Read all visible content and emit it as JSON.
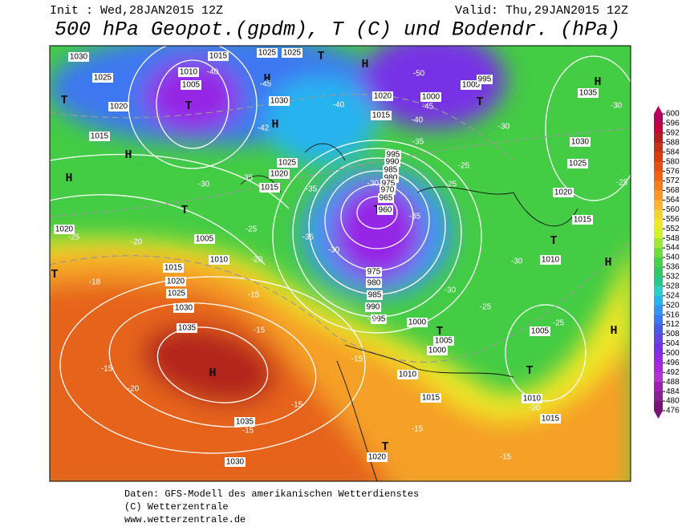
{
  "header": {
    "init": "Init : Wed,28JAN2015 12Z",
    "valid": "Valid: Thu,29JAN2015 12Z",
    "title": "500 hPa Geopot.(gpdm), T (C) und Bodendr. (hPa)"
  },
  "colorbar": {
    "ticks": [
      600,
      596,
      592,
      588,
      584,
      580,
      576,
      572,
      568,
      564,
      560,
      556,
      552,
      548,
      544,
      540,
      536,
      532,
      528,
      524,
      520,
      516,
      512,
      508,
      504,
      500,
      496,
      492,
      488,
      484,
      480,
      476
    ],
    "colors": [
      "#b4005a",
      "#c8003c",
      "#b41e1e",
      "#c83214",
      "#dc3c0a",
      "#e65014",
      "#f06414",
      "#f57d1e",
      "#fa9628",
      "#fab432",
      "#f5d232",
      "#f0e628",
      "#d2f028",
      "#a0e632",
      "#6edc3c",
      "#46d24b",
      "#32c864",
      "#28c88c",
      "#28d2c8",
      "#28b4f0",
      "#3296f0",
      "#3c78f0",
      "#4b5ae6",
      "#6446e6",
      "#7832e6",
      "#9628e6",
      "#aa28dc",
      "#b432d2",
      "#a01eb4",
      "#8c1e96",
      "#781478"
    ]
  },
  "map_labels": [
    "H",
    "H",
    "H",
    "H",
    "H",
    "T",
    "T",
    "T",
    "T",
    "T",
    "H",
    "T",
    "T",
    "H",
    "H",
    "H",
    "T",
    "T",
    "T",
    "T",
    "1030",
    "1025",
    "1020",
    "1015",
    "1010",
    "1005",
    "1015",
    "1025",
    "1025",
    "1030",
    "1020",
    "1015",
    "1025",
    "1020",
    "1015",
    "1005",
    "1000",
    "995",
    "1035",
    "1030",
    "1025",
    "1020",
    "1015",
    "1010",
    "995",
    "990",
    "985",
    "980",
    "975",
    "970",
    "965",
    "960",
    "975",
    "980",
    "985",
    "990",
    "995",
    "1000",
    "1005",
    "1000",
    "1005",
    "1020",
    "1005",
    "1010",
    "1015",
    "1020",
    "1025",
    "1030",
    "1035",
    "1035",
    "1030",
    "1020",
    "1015",
    "1010",
    "1010",
    "1015",
    "-40",
    "-45",
    "-40",
    "-45",
    "-50",
    "-40",
    "-35",
    "-42",
    "-30",
    "-30",
    "-25",
    "-30",
    "-35",
    "-35",
    "-30",
    "-35",
    "-25",
    "-35",
    "-30",
    "-25",
    "-20",
    "-25",
    "-20",
    "-18",
    "-15",
    "-30",
    "-30",
    "-25",
    "-20",
    "-25",
    "-15",
    "-15",
    "-15",
    "-20",
    "-15",
    "-15",
    "-15",
    "-20",
    "-15",
    "-25"
  ],
  "footer": [
    "Daten: GFS-Modell des amerikanischen Wetterdienstes",
    "(C) Wetterzentrale",
    "www.wetterzentrale.de"
  ]
}
